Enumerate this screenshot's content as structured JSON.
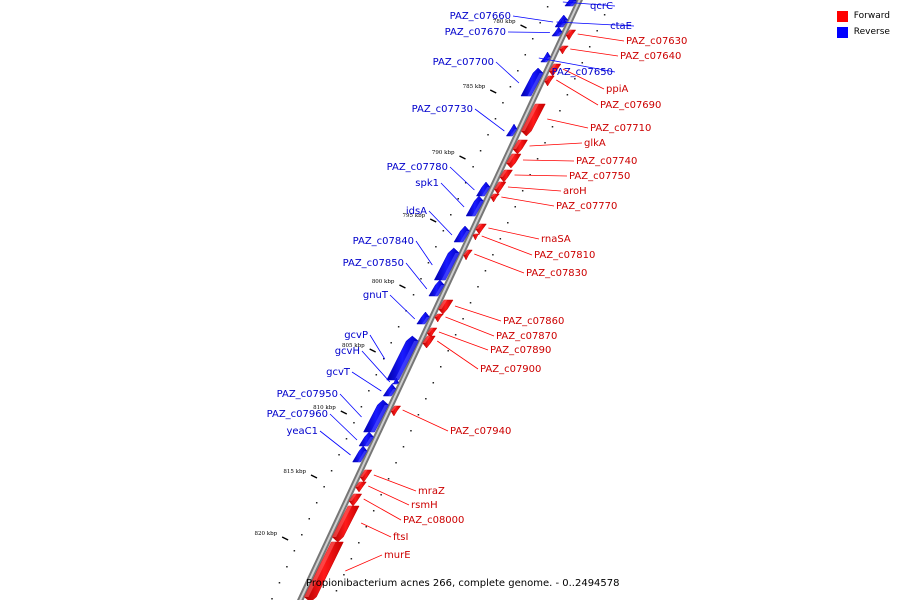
{
  "legend": {
    "forward": {
      "label": "Forward",
      "color": "#ff0000"
    },
    "reverse": {
      "label": "Reverse",
      "color": "#0000ff"
    }
  },
  "caption": "Propionibacterium acnes 266, complete genome. - 0..2494578",
  "ticks": [
    {
      "label": "780 kbp",
      "position_kbp": 780
    },
    {
      "label": "785 kbp",
      "position_kbp": 785
    },
    {
      "label": "790 kbp",
      "position_kbp": 790
    },
    {
      "label": "795 kbp",
      "position_kbp": 795
    },
    {
      "label": "800 kbp",
      "position_kbp": 800
    },
    {
      "label": "805 kbp",
      "position_kbp": 805
    },
    {
      "label": "810 kbp",
      "position_kbp": 810
    },
    {
      "label": "815 kbp",
      "position_kbp": 815
    },
    {
      "label": "820 kbp",
      "position_kbp": 820
    }
  ],
  "genes": [
    {
      "name": "qcrC",
      "strand": "reverse"
    },
    {
      "name": "PAZ_c07660",
      "strand": "reverse"
    },
    {
      "name": "ctaE",
      "strand": "reverse"
    },
    {
      "name": "PAZ_c07670",
      "strand": "reverse"
    },
    {
      "name": "PAZ_c07630",
      "strand": "forward"
    },
    {
      "name": "PAZ_c07640",
      "strand": "forward"
    },
    {
      "name": "PAZ_c07700",
      "strand": "reverse"
    },
    {
      "name": "PAZ_c07650",
      "strand": "reverse"
    },
    {
      "name": "ppiA",
      "strand": "forward"
    },
    {
      "name": "PAZ_c07690",
      "strand": "forward"
    },
    {
      "name": "PAZ_c07730",
      "strand": "reverse"
    },
    {
      "name": "PAZ_c07710",
      "strand": "forward"
    },
    {
      "name": "glkA",
      "strand": "forward"
    },
    {
      "name": "PAZ_c07740",
      "strand": "forward"
    },
    {
      "name": "PAZ_c07780",
      "strand": "reverse"
    },
    {
      "name": "PAZ_c07750",
      "strand": "forward"
    },
    {
      "name": "spk1",
      "strand": "reverse"
    },
    {
      "name": "aroH",
      "strand": "forward"
    },
    {
      "name": "PAZ_c07770",
      "strand": "forward"
    },
    {
      "name": "idsA",
      "strand": "reverse"
    },
    {
      "name": "rnaSA",
      "strand": "forward"
    },
    {
      "name": "PAZ_c07840",
      "strand": "reverse"
    },
    {
      "name": "PAZ_c07810",
      "strand": "forward"
    },
    {
      "name": "PAZ_c07850",
      "strand": "reverse"
    },
    {
      "name": "PAZ_c07830",
      "strand": "forward"
    },
    {
      "name": "gnuT",
      "strand": "reverse"
    },
    {
      "name": "PAZ_c07860",
      "strand": "forward"
    },
    {
      "name": "PAZ_c07870",
      "strand": "forward"
    },
    {
      "name": "gcvP",
      "strand": "reverse"
    },
    {
      "name": "PAZ_c07890",
      "strand": "forward"
    },
    {
      "name": "gcvH",
      "strand": "reverse"
    },
    {
      "name": "PAZ_c07900",
      "strand": "forward"
    },
    {
      "name": "gcvT",
      "strand": "reverse"
    },
    {
      "name": "PAZ_c07950",
      "strand": "reverse"
    },
    {
      "name": "PAZ_c07960",
      "strand": "reverse"
    },
    {
      "name": "PAZ_c07940",
      "strand": "forward"
    },
    {
      "name": "yeaC1",
      "strand": "reverse"
    },
    {
      "name": "mraZ",
      "strand": "forward"
    },
    {
      "name": "rsmH",
      "strand": "forward"
    },
    {
      "name": "PAZ_c08000",
      "strand": "forward"
    },
    {
      "name": "ftsI",
      "strand": "forward"
    },
    {
      "name": "murE",
      "strand": "forward"
    }
  ]
}
